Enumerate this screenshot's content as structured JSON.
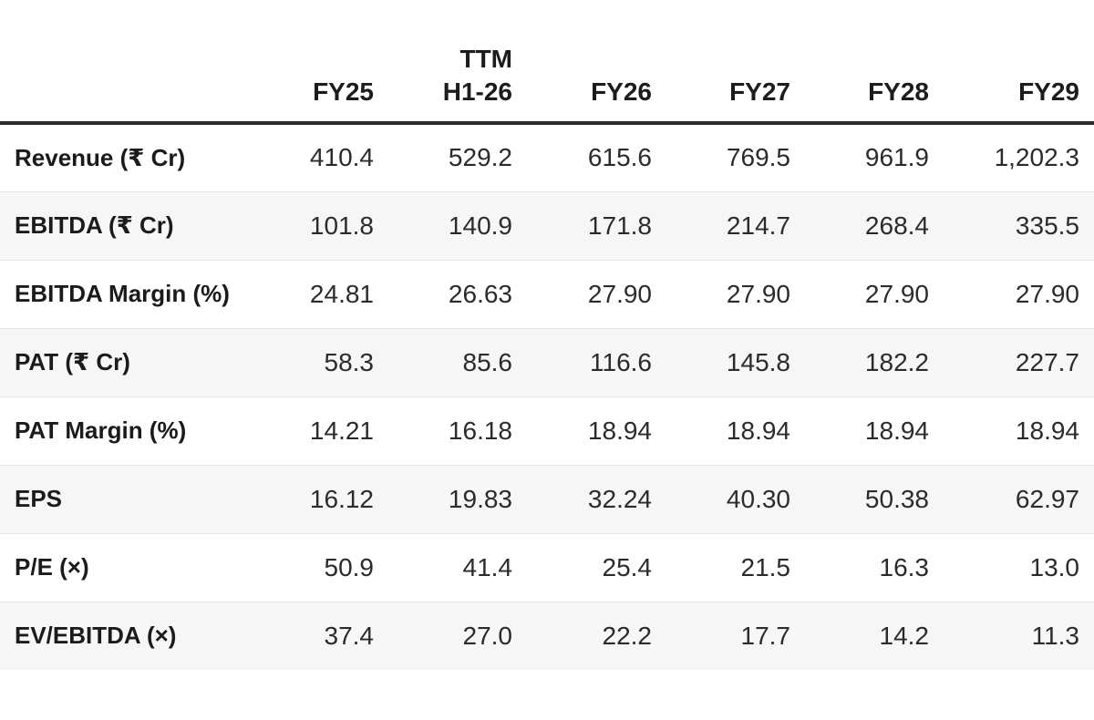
{
  "colors": {
    "background": "#ffffff",
    "stripe_row": "#f6f6f6",
    "divider": "#e6e6e6",
    "header_rule": "#2b2b2b",
    "label_text": "#1b1b1b",
    "value_text": "#2b2b2b"
  },
  "headers": [
    {
      "top": "",
      "bottom": ""
    },
    {
      "top": "",
      "bottom": "FY25"
    },
    {
      "top": "TTM",
      "bottom": "H1-26"
    },
    {
      "top": "",
      "bottom": "FY26"
    },
    {
      "top": "",
      "bottom": "FY27"
    },
    {
      "top": "",
      "bottom": "FY28"
    },
    {
      "top": "",
      "bottom": "FY29"
    }
  ],
  "chart_data": {
    "type": "table",
    "title": "",
    "columns": [
      "FY25",
      "TTM H1-26",
      "FY26",
      "FY27",
      "FY28",
      "FY29"
    ],
    "rows": [
      {
        "metric": "Revenue (₹ Cr)",
        "values": [
          "410.4",
          "529.2",
          "615.6",
          "769.5",
          "961.9",
          "1,202.3"
        ]
      },
      {
        "metric": "EBITDA (₹ Cr)",
        "values": [
          "101.8",
          "140.9",
          "171.8",
          "214.7",
          "268.4",
          "335.5"
        ]
      },
      {
        "metric": "EBITDA Margin (%)",
        "values": [
          "24.81",
          "26.63",
          "27.90",
          "27.90",
          "27.90",
          "27.90"
        ]
      },
      {
        "metric": "PAT (₹ Cr)",
        "values": [
          "58.3",
          "85.6",
          "116.6",
          "145.8",
          "182.2",
          "227.7"
        ]
      },
      {
        "metric": "PAT Margin (%)",
        "values": [
          "14.21",
          "16.18",
          "18.94",
          "18.94",
          "18.94",
          "18.94"
        ]
      },
      {
        "metric": "EPS",
        "values": [
          "16.12",
          "19.83",
          "32.24",
          "40.30",
          "50.38",
          "62.97"
        ]
      },
      {
        "metric": "P/E (×)",
        "values": [
          "50.9",
          "41.4",
          "25.4",
          "21.5",
          "16.3",
          "13.0"
        ]
      },
      {
        "metric": "EV/EBITDA (×)",
        "values": [
          "37.4",
          "27.0",
          "22.2",
          "17.7",
          "14.2",
          "11.3"
        ]
      }
    ]
  }
}
